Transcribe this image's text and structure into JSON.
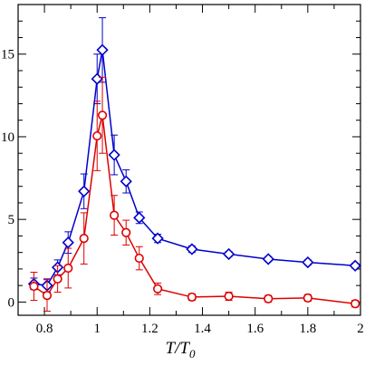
{
  "chart_data": {
    "type": "line",
    "title": "",
    "xlabel": "T/T",
    "xlabel_sub": "0",
    "ylabel": "",
    "xlim": [
      0.7,
      2.0
    ],
    "ylim": [
      -0.8,
      18.0
    ],
    "x_ticks": [
      0.8,
      1.0,
      1.2,
      1.4,
      1.6,
      1.8,
      2.0
    ],
    "x_tick_labels": [
      "0.8",
      "1",
      "1.2",
      "1.4",
      "1.6",
      "1.8",
      "2"
    ],
    "y_ticks": [
      0,
      5,
      10,
      15
    ],
    "y_tick_labels": [
      "0",
      "5",
      "10",
      "15"
    ],
    "grid": false,
    "legend": "none",
    "series": [
      {
        "color": "#0000cc",
        "marker": "diamond",
        "x": [
          0.76,
          0.81,
          0.85,
          0.89,
          0.95,
          1.0,
          1.02,
          1.065,
          1.11,
          1.16,
          1.23,
          1.36,
          1.5,
          1.65,
          1.8,
          1.98
        ],
        "y": [
          1.1,
          1.0,
          2.1,
          3.6,
          6.7,
          13.5,
          15.25,
          8.9,
          7.3,
          5.1,
          3.85,
          3.2,
          2.9,
          2.6,
          2.4,
          2.2
        ],
        "err": [
          0.35,
          0.4,
          0.45,
          0.65,
          1.05,
          1.5,
          1.95,
          1.2,
          0.7,
          0.35,
          0.25,
          0.2,
          0.15,
          0.15,
          0.15,
          0.15
        ]
      },
      {
        "color": "#dd0000",
        "marker": "circle",
        "x": [
          0.76,
          0.81,
          0.85,
          0.89,
          0.95,
          1.0,
          1.02,
          1.065,
          1.11,
          1.16,
          1.23,
          1.36,
          1.5,
          1.65,
          1.8,
          1.98
        ],
        "y": [
          0.95,
          0.4,
          1.4,
          2.05,
          3.85,
          10.05,
          11.3,
          5.25,
          4.2,
          2.65,
          0.8,
          0.3,
          0.35,
          0.2,
          0.25,
          -0.1
        ],
        "err": [
          0.85,
          0.95,
          0.8,
          1.2,
          1.55,
          2.1,
          2.3,
          1.2,
          0.75,
          0.7,
          0.35,
          0.2,
          0.25,
          0.2,
          0.2,
          0.2
        ]
      }
    ]
  }
}
